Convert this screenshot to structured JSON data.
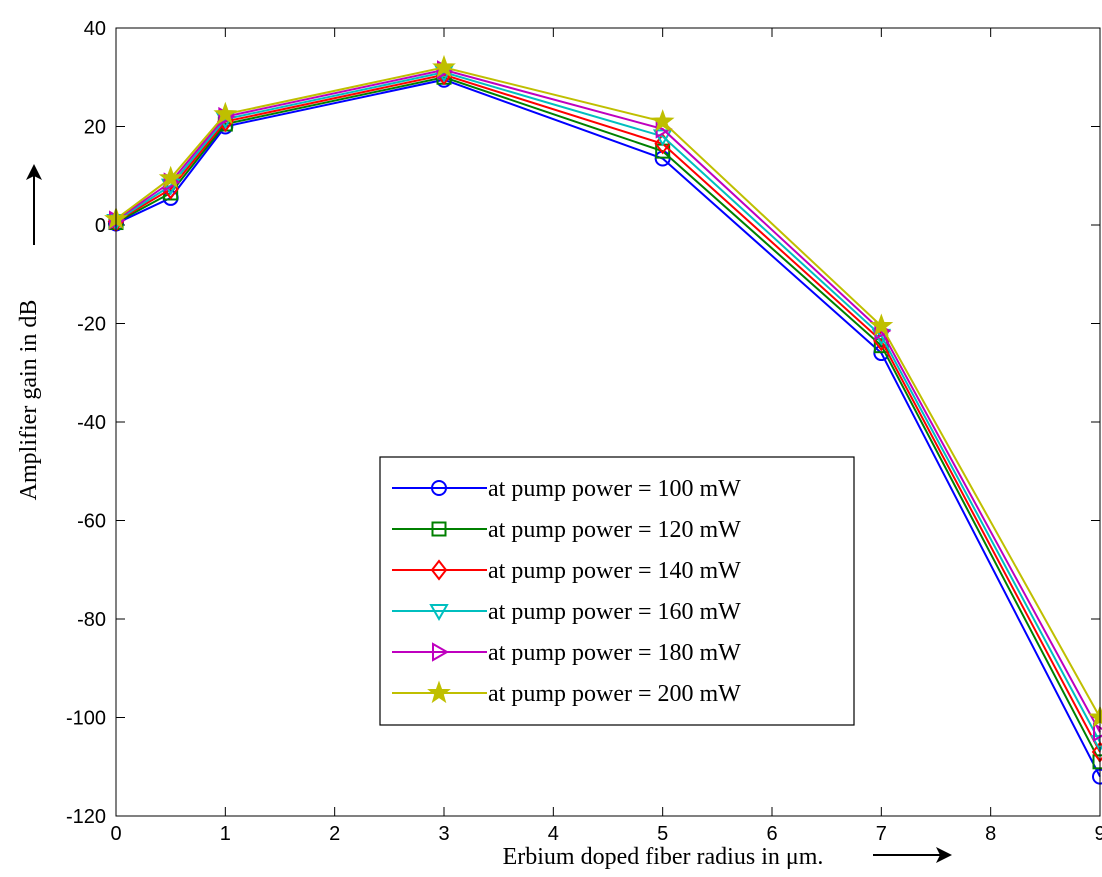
{
  "chart_data": {
    "type": "line",
    "title": "",
    "xlabel": "Erbium doped fiber radius in μm.",
    "ylabel": "Amplifier gain in dB",
    "xlim": [
      0,
      9
    ],
    "ylim": [
      -120,
      40
    ],
    "xticks": [
      0,
      1,
      2,
      3,
      4,
      5,
      6,
      7,
      8,
      9
    ],
    "yticks": [
      -120,
      -100,
      -80,
      -60,
      -40,
      -20,
      0,
      20,
      40
    ],
    "grid": false,
    "legend_position": "bottom-center",
    "x": [
      0,
      0.5,
      1,
      3,
      5,
      7,
      9
    ],
    "series": [
      {
        "name": "at pump power = 100 mW",
        "color": "#0000ff",
        "marker": "circle",
        "values": [
          0.3,
          5.5,
          20.0,
          29.5,
          13.5,
          -26.0,
          -112.0
        ]
      },
      {
        "name": "at pump power = 120 mW",
        "color": "#008000",
        "marker": "square",
        "values": [
          0.5,
          6.5,
          20.5,
          30.0,
          15.0,
          -24.5,
          -109.0
        ]
      },
      {
        "name": "at pump power = 140 mW",
        "color": "#ff0000",
        "marker": "diamond",
        "values": [
          0.7,
          7.3,
          21.0,
          30.5,
          16.5,
          -23.5,
          -107.0
        ]
      },
      {
        "name": "at pump power = 160 mW",
        "color": "#00bfbf",
        "marker": "triangle-down",
        "values": [
          0.8,
          8.0,
          21.5,
          31.0,
          18.0,
          -22.5,
          -105.0
        ]
      },
      {
        "name": "at pump power = 180 mW",
        "color": "#bf00bf",
        "marker": "triangle-right",
        "values": [
          1.0,
          8.7,
          22.0,
          31.5,
          19.5,
          -21.5,
          -103.0
        ]
      },
      {
        "name": "at pump power = 200 mW",
        "color": "#bfbf00",
        "marker": "star",
        "values": [
          1.2,
          9.5,
          22.5,
          32.0,
          21.0,
          -20.5,
          -100.0
        ]
      }
    ]
  }
}
